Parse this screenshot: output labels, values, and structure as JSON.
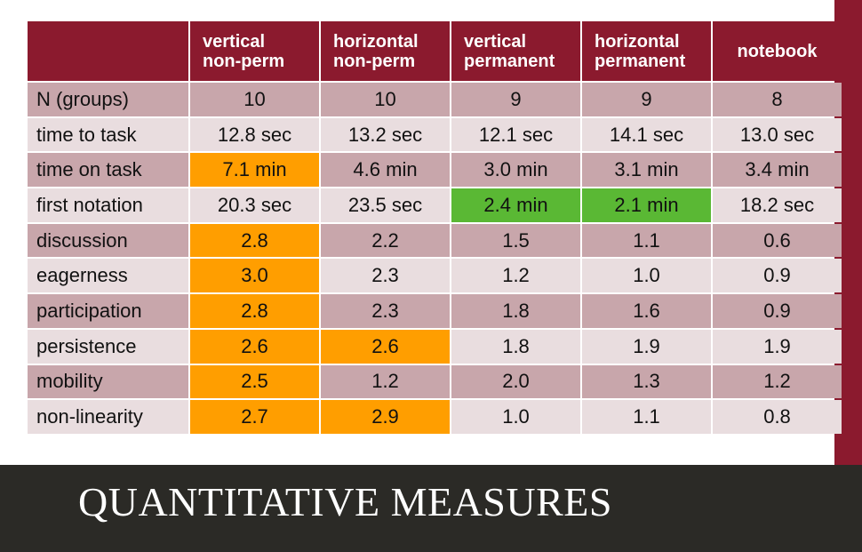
{
  "slide_title": "QUANTITATIVE MEASURES",
  "colors": {
    "header_bg": "#8b1a2e",
    "row_odd_bg": "#c8a6ab",
    "row_even_bg": "#e9dddf",
    "highlight_orange": "#ff9e00",
    "highlight_green": "#5ab834",
    "footer_bg": "#2b2a26"
  },
  "table": {
    "corner_label": "",
    "columns": [
      {
        "line1": "vertical",
        "line2": "non-perm"
      },
      {
        "line1": "horizontal",
        "line2": "non-perm"
      },
      {
        "line1": "vertical",
        "line2": "permanent"
      },
      {
        "line1": "horizontal",
        "line2": "permanent"
      },
      {
        "line1": "notebook",
        "line2": ""
      }
    ],
    "rows": [
      {
        "label": "N (groups)",
        "values": [
          "10",
          "10",
          "9",
          "9",
          "8"
        ]
      },
      {
        "label": "time to task",
        "values": [
          "12.8 sec",
          "13.2 sec",
          "12.1 sec",
          "14.1 sec",
          "13.0 sec"
        ]
      },
      {
        "label": "time on task",
        "values": [
          "7.1 min",
          "4.6 min",
          "3.0 min",
          "3.1 min",
          "3.4 min"
        ]
      },
      {
        "label": "first notation",
        "values": [
          "20.3 sec",
          "23.5 sec",
          "2.4 min",
          "2.1 min",
          "18.2 sec"
        ]
      },
      {
        "label": "discussion",
        "values": [
          "2.8",
          "2.2",
          "1.5",
          "1.1",
          "0.6"
        ]
      },
      {
        "label": "eagerness",
        "values": [
          "3.0",
          "2.3",
          "1.2",
          "1.0",
          "0.9"
        ]
      },
      {
        "label": "participation",
        "values": [
          "2.8",
          "2.3",
          "1.8",
          "1.6",
          "0.9"
        ]
      },
      {
        "label": "persistence",
        "values": [
          "2.6",
          "2.6",
          "1.8",
          "1.9",
          "1.9"
        ]
      },
      {
        "label": "mobility",
        "values": [
          "2.5",
          "1.2",
          "2.0",
          "1.3",
          "1.2"
        ]
      },
      {
        "label": "non-linearity",
        "values": [
          "2.7",
          "2.9",
          "1.0",
          "1.1",
          "0.8"
        ]
      }
    ]
  }
}
